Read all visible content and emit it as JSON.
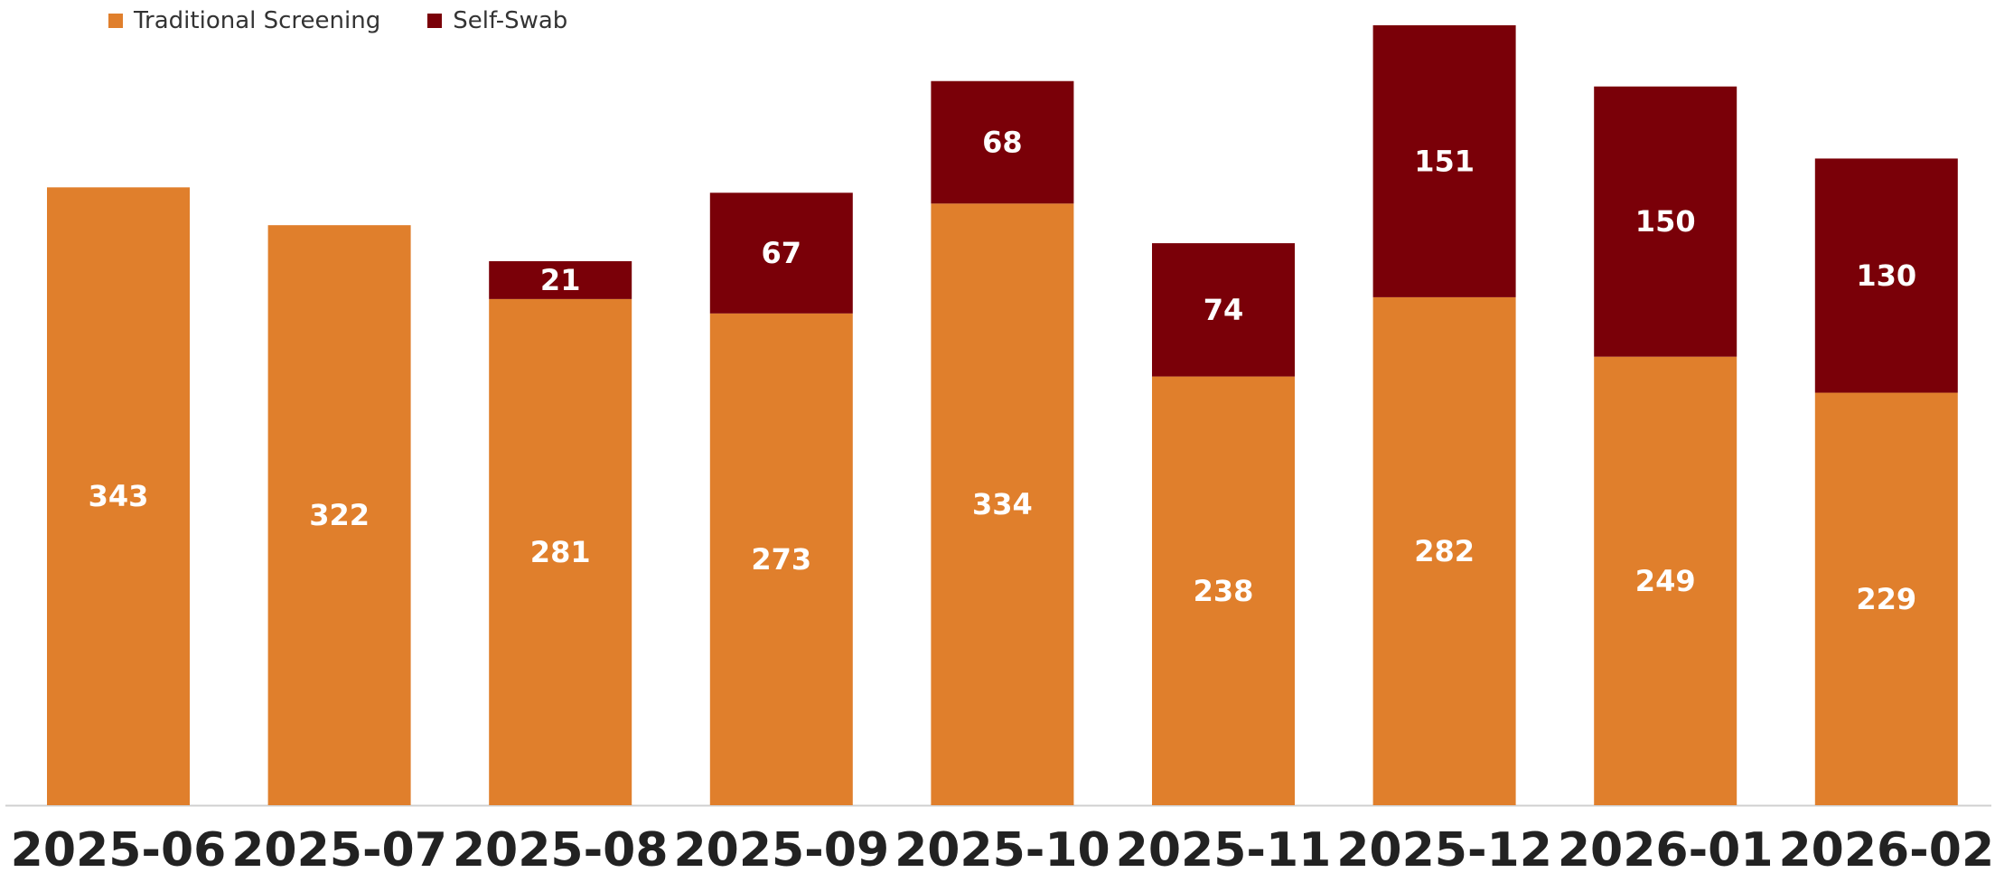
{
  "chart_data": {
    "type": "bar",
    "stacked": true,
    "categories": [
      "2025-06",
      "2025-07",
      "2025-08",
      "2025-09",
      "2025-10",
      "2025-11",
      "2025-12",
      "2026-01",
      "2026-02"
    ],
    "series": [
      {
        "name": "Traditional Screening",
        "color": "#E07F2C",
        "values": [
          343,
          322,
          281,
          273,
          334,
          238,
          282,
          249,
          229
        ]
      },
      {
        "name": "Self-Swab",
        "color": "#7A0008",
        "values": [
          null,
          null,
          21,
          67,
          68,
          74,
          151,
          150,
          130
        ]
      }
    ],
    "title": "",
    "xlabel": "",
    "ylabel": "",
    "ylim": [
      0,
      443
    ],
    "grid": false,
    "legend_position": "top-left",
    "data_labels": true
  }
}
